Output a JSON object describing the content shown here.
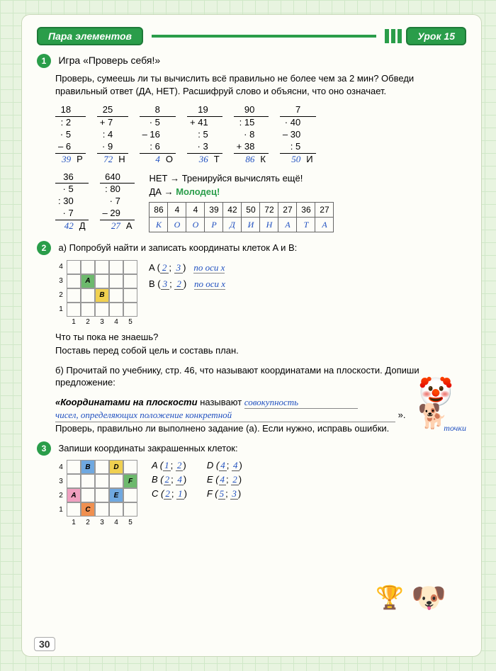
{
  "header": {
    "left": "Пара элементов",
    "right": "Урок 15"
  },
  "task1": {
    "num": "1",
    "title": "Игра «Проверь себя!»",
    "text": "Проверь, сумеешь ли ты вычислить всё правильно не более чем за 2 мин? Обведи правильный ответ (ДА, НЕТ). Расшифруй слово и объясни, что оно означает.",
    "calcs": [
      {
        "start": "18",
        "ops": [
          ": 2",
          "· 5",
          "– 6"
        ],
        "ans": "39",
        "letter": "Р"
      },
      {
        "start": "25",
        "ops": [
          "+ 7",
          ": 4",
          "· 9"
        ],
        "ans": "72",
        "letter": "Н"
      },
      {
        "start": "8",
        "ops": [
          "· 5",
          "– 16",
          ": 6"
        ],
        "ans": "4",
        "letter": "О"
      },
      {
        "start": "19",
        "ops": [
          "+ 41",
          ": 5",
          "· 3"
        ],
        "ans": "36",
        "letter": "Т"
      },
      {
        "start": "90",
        "ops": [
          ": 15",
          "· 8",
          "+ 38"
        ],
        "ans": "86",
        "letter": "К"
      },
      {
        "start": "7",
        "ops": [
          "· 40",
          "– 30",
          ": 5"
        ],
        "ans": "50",
        "letter": "И"
      }
    ],
    "calcs2": [
      {
        "start": "36",
        "ops": [
          "· 5",
          ": 30",
          "· 7"
        ],
        "ans": "42",
        "letter": "Д"
      },
      {
        "start": "640",
        "ops": [
          ": 80",
          "· 7",
          "– 29"
        ],
        "ans": "27",
        "letter": "А"
      }
    ],
    "result_no": "НЕТ → Тренируйся вычислять ещё!",
    "result_yes_1": "ДА →",
    "result_yes_2": "Молодец!",
    "table_nums": [
      "86",
      "4",
      "4",
      "39",
      "42",
      "50",
      "72",
      "27",
      "36",
      "27"
    ],
    "table_letters": [
      "К",
      "О",
      "О",
      "Р",
      "Д",
      "И",
      "Н",
      "А",
      "Т",
      "А"
    ]
  },
  "task2": {
    "num": "2",
    "text_a": "а) Попробуй найти и записать координаты клеток A и B:",
    "grid": {
      "rows": [
        "4",
        "3",
        "2",
        "1"
      ],
      "cols": [
        "1",
        "2",
        "3",
        "4",
        "5"
      ],
      "cells": {
        "A": {
          "r": 3,
          "c": 2,
          "cls": "filled-g",
          "label": "A"
        },
        "B": {
          "r": 2,
          "c": 3,
          "cls": "filled-y",
          "label": "B"
        }
      }
    },
    "coord_A_label": "A (",
    "coord_A_vals": [
      "2",
      "3"
    ],
    "coord_A_note": "по оси x",
    "coord_B_label": "B (",
    "coord_B_vals": [
      "3",
      "2"
    ],
    "coord_B_note": "по оси x",
    "q1": "Что ты пока не знаешь?",
    "q2": "Поставь перед собой цель и составь план.",
    "text_b": "б) Прочитай по учебнику, стр. 46, что называют координатами на плоскости. Допиши предложение:",
    "sentence_start": "«Координатами на плоскости",
    "sentence_mid": "называют",
    "hand1": "совокупность",
    "hand2": "чисел, определяющих положение конкретной",
    "hand3": "точки",
    "closing": "».",
    "check": "Проверь, правильно ли выполнено задание (а). Если нужно, исправь ошибки."
  },
  "task3": {
    "num": "3",
    "text": "Запиши координаты закрашенных клеток:",
    "grid": {
      "rows": [
        "4",
        "3",
        "2",
        "1"
      ],
      "cols": [
        "1",
        "2",
        "3",
        "4",
        "5"
      ],
      "cells": [
        {
          "r": 4,
          "c": 2,
          "cls": "filled-b",
          "label": "B"
        },
        {
          "r": 4,
          "c": 4,
          "cls": "filled-y",
          "label": "D"
        },
        {
          "r": 3,
          "c": 5,
          "cls": "filled-g",
          "label": "F"
        },
        {
          "r": 2,
          "c": 1,
          "cls": "filled-rose",
          "label": "A"
        },
        {
          "r": 2,
          "c": 4,
          "cls": "filled-b",
          "label": "E"
        },
        {
          "r": 1,
          "c": 2,
          "cls": "filled-o",
          "label": "C"
        }
      ]
    },
    "coords": [
      {
        "l": "A (",
        "v": [
          "1",
          "2"
        ],
        "r": ")"
      },
      {
        "l": "D (",
        "v": [
          "4",
          "4"
        ],
        "r": ")"
      },
      {
        "l": "B (",
        "v": [
          "2",
          "4"
        ],
        "r": ")"
      },
      {
        "l": "E (",
        "v": [
          "4",
          "2"
        ],
        "r": ")"
      },
      {
        "l": "C (",
        "v": [
          "2",
          "1"
        ],
        "r": ")"
      },
      {
        "l": "F (",
        "v": [
          "5",
          "3"
        ],
        "r": ")"
      }
    ]
  },
  "page_number": "30"
}
